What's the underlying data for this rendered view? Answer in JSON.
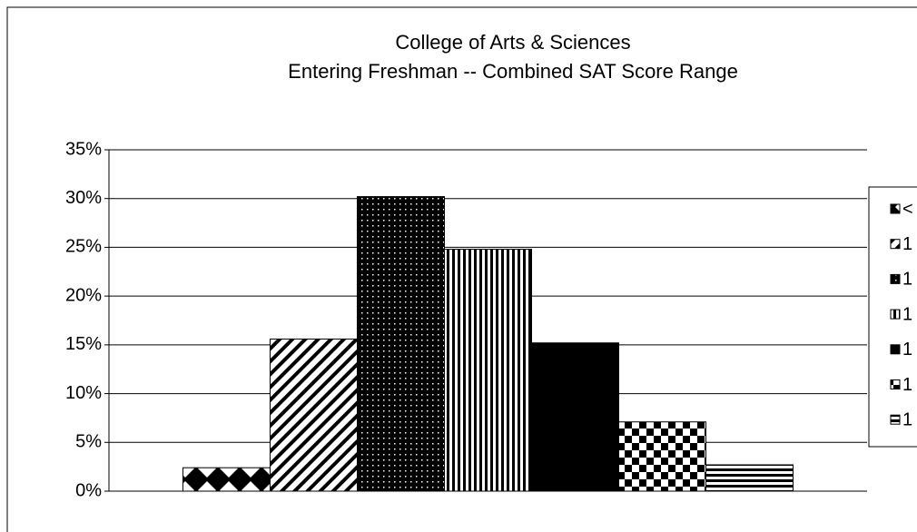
{
  "chart_data": {
    "type": "bar",
    "title": [
      "College of Arts & Sciences",
      "Entering Freshman -- Combined SAT Score Range"
    ],
    "series": [
      {
        "name": "<",
        "pattern": "diamond",
        "values": [
          2.4
        ]
      },
      {
        "name": "1",
        "pattern": "diagonal",
        "values": [
          15.6
        ]
      },
      {
        "name": "1",
        "pattern": "dots",
        "values": [
          30.2
        ]
      },
      {
        "name": "1",
        "pattern": "vertical",
        "values": [
          24.8
        ]
      },
      {
        "name": "1",
        "pattern": "solid",
        "values": [
          15.2
        ]
      },
      {
        "name": "1",
        "pattern": "checker",
        "values": [
          7.1
        ]
      },
      {
        "name": "1",
        "pattern": "horizontal",
        "values": [
          2.7
        ]
      }
    ],
    "ylim": [
      0,
      35
    ],
    "yticks": [
      {
        "value": 0,
        "label": "0%"
      },
      {
        "value": 5,
        "label": "5%"
      },
      {
        "value": 10,
        "label": "10%"
      },
      {
        "value": 15,
        "label": "15%"
      },
      {
        "value": 20,
        "label": "20%"
      },
      {
        "value": 25,
        "label": "25%"
      },
      {
        "value": 30,
        "label": "30%"
      },
      {
        "value": 35,
        "label": "35%"
      }
    ],
    "grid": true,
    "legend": "right"
  }
}
